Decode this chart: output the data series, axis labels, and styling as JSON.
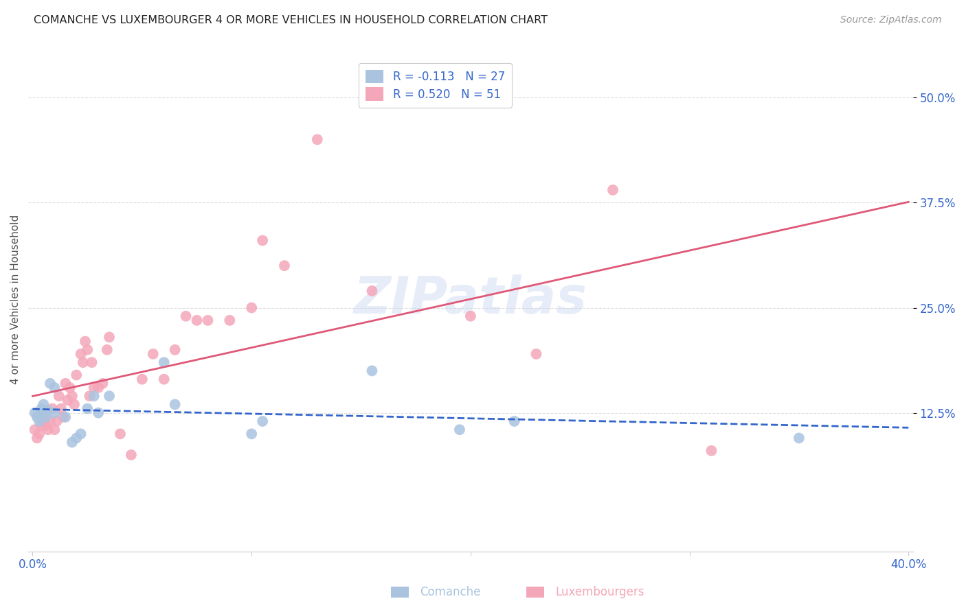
{
  "title": "COMANCHE VS LUXEMBOURGER 4 OR MORE VEHICLES IN HOUSEHOLD CORRELATION CHART",
  "source": "Source: ZipAtlas.com",
  "ylabel": "4 or more Vehicles in Household",
  "xlabel_comanche": "Comanche",
  "xlabel_luxembourger": "Luxembourgers",
  "xlim": [
    -0.002,
    0.402
  ],
  "ylim": [
    -0.04,
    0.56
  ],
  "xticks": [
    0.0,
    0.1,
    0.2,
    0.3,
    0.4
  ],
  "xtick_labels": [
    "0.0%",
    "",
    "",
    "",
    "40.0%"
  ],
  "ytick_positions": [
    0.125,
    0.25,
    0.375,
    0.5
  ],
  "ytick_labels": [
    "12.5%",
    "25.0%",
    "37.5%",
    "50.0%"
  ],
  "grid_color": "#dddddd",
  "background_color": "#ffffff",
  "comanche_color": "#aac4e0",
  "luxembourger_color": "#f4a7b9",
  "comanche_line_color": "#3366cc",
  "luxembourger_line_color": "#e05878",
  "R_comanche": -0.113,
  "N_comanche": 27,
  "R_luxembourger": 0.52,
  "N_luxembourger": 51,
  "watermark": "ZIPatlas",
  "comanche_x": [
    0.001,
    0.002,
    0.003,
    0.004,
    0.005,
    0.005,
    0.006,
    0.007,
    0.008,
    0.01,
    0.01,
    0.015,
    0.018,
    0.02,
    0.022,
    0.025,
    0.028,
    0.03,
    0.035,
    0.06,
    0.065,
    0.1,
    0.105,
    0.155,
    0.195,
    0.22,
    0.35
  ],
  "comanche_y": [
    0.125,
    0.12,
    0.115,
    0.13,
    0.125,
    0.135,
    0.12,
    0.128,
    0.16,
    0.155,
    0.125,
    0.12,
    0.09,
    0.095,
    0.1,
    0.13,
    0.145,
    0.125,
    0.145,
    0.185,
    0.135,
    0.1,
    0.115,
    0.175,
    0.105,
    0.115,
    0.095
  ],
  "luxembourger_x": [
    0.001,
    0.002,
    0.003,
    0.004,
    0.005,
    0.005,
    0.006,
    0.007,
    0.008,
    0.009,
    0.01,
    0.011,
    0.012,
    0.013,
    0.014,
    0.015,
    0.016,
    0.017,
    0.018,
    0.019,
    0.02,
    0.022,
    0.023,
    0.024,
    0.025,
    0.026,
    0.027,
    0.028,
    0.03,
    0.032,
    0.034,
    0.035,
    0.04,
    0.045,
    0.05,
    0.055,
    0.06,
    0.065,
    0.07,
    0.075,
    0.08,
    0.09,
    0.1,
    0.105,
    0.115,
    0.13,
    0.155,
    0.2,
    0.23,
    0.265,
    0.31
  ],
  "luxembourger_y": [
    0.105,
    0.095,
    0.1,
    0.11,
    0.115,
    0.12,
    0.11,
    0.105,
    0.115,
    0.13,
    0.105,
    0.115,
    0.145,
    0.13,
    0.12,
    0.16,
    0.14,
    0.155,
    0.145,
    0.135,
    0.17,
    0.195,
    0.185,
    0.21,
    0.2,
    0.145,
    0.185,
    0.155,
    0.155,
    0.16,
    0.2,
    0.215,
    0.1,
    0.075,
    0.165,
    0.195,
    0.165,
    0.2,
    0.24,
    0.235,
    0.235,
    0.235,
    0.25,
    0.33,
    0.3,
    0.45,
    0.27,
    0.24,
    0.195,
    0.39,
    0.08
  ]
}
